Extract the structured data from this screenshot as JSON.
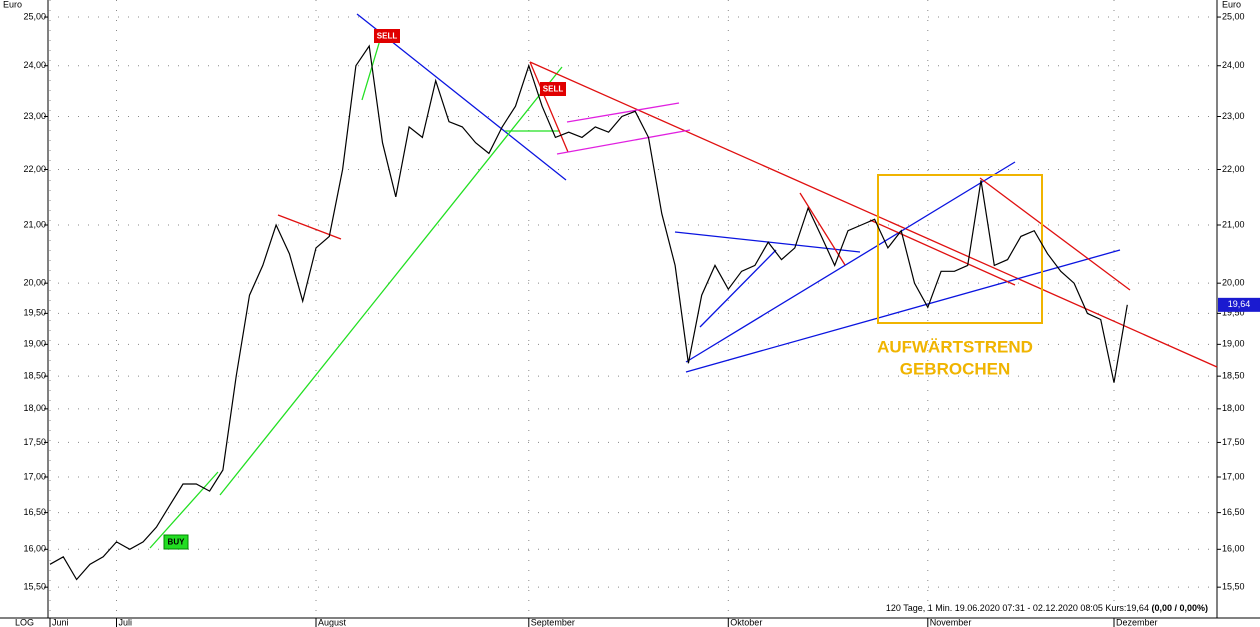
{
  "chart_data": {
    "type": "line",
    "log_scale": true,
    "grid": true,
    "color": "#000000",
    "y_unit": "Euro",
    "scale_label": "LOG",
    "categories": [
      "Juni",
      null,
      null,
      null,
      null,
      "Juli",
      null,
      null,
      null,
      null,
      null,
      null,
      null,
      null,
      null,
      null,
      null,
      null,
      null,
      null,
      "August",
      null,
      null,
      null,
      null,
      null,
      null,
      null,
      null,
      null,
      null,
      null,
      null,
      null,
      null,
      null,
      "September",
      null,
      null,
      null,
      null,
      null,
      null,
      null,
      null,
      null,
      null,
      null,
      null,
      null,
      null,
      "Oktober",
      null,
      null,
      null,
      null,
      null,
      null,
      null,
      null,
      null,
      null,
      null,
      null,
      null,
      null,
      "November",
      null,
      null,
      null,
      null,
      null,
      null,
      null,
      null,
      null,
      null,
      null,
      null,
      null,
      "Dezember",
      null
    ],
    "values": [
      15.8,
      15.9,
      15.6,
      15.8,
      15.9,
      16.1,
      16.0,
      16.1,
      16.3,
      16.6,
      16.9,
      16.9,
      16.8,
      17.1,
      18.5,
      19.8,
      20.3,
      21.0,
      20.5,
      19.7,
      20.6,
      20.8,
      22.0,
      24.0,
      24.4,
      22.5,
      21.5,
      22.8,
      22.6,
      23.7,
      22.9,
      22.8,
      22.5,
      22.3,
      22.8,
      23.2,
      24.0,
      23.2,
      22.6,
      22.7,
      22.6,
      22.8,
      22.7,
      23.0,
      23.1,
      22.6,
      21.2,
      20.3,
      18.7,
      19.8,
      20.3,
      19.9,
      20.2,
      20.3,
      20.7,
      20.4,
      20.6,
      21.3,
      20.8,
      20.3,
      20.9,
      21.0,
      21.1,
      20.6,
      20.9,
      20.0,
      19.6,
      20.2,
      20.2,
      20.3,
      21.8,
      20.3,
      20.4,
      20.8,
      20.9,
      20.5,
      20.2,
      20.0,
      19.5,
      19.4,
      18.4,
      19.64
    ],
    "ylim": [
      15.27,
      25.36
    ],
    "yticks": [
      {
        "value": 15.5,
        "label": "15,50"
      },
      {
        "value": 16,
        "label": "16,00"
      },
      {
        "value": 16.5,
        "label": "16,50"
      },
      {
        "value": 17,
        "label": "17,00"
      },
      {
        "value": 17.5,
        "label": "17,50"
      },
      {
        "value": 18,
        "label": "18,00"
      },
      {
        "value": 18.5,
        "label": "18,50"
      },
      {
        "value": 19,
        "label": "19,00"
      },
      {
        "value": 19.5,
        "label": "19,50"
      },
      {
        "value": 20,
        "label": "20,00"
      },
      {
        "value": 21,
        "label": "21,00"
      },
      {
        "value": 22,
        "label": "22,00"
      },
      {
        "value": 23,
        "label": "23,00"
      },
      {
        "value": 24,
        "label": "24,00"
      },
      {
        "value": 25,
        "label": "25,00"
      }
    ],
    "price_tag": {
      "value": 19.64,
      "label": "19,64"
    },
    "annotations": [
      "SELL",
      "SELL",
      "BUY",
      "AUFWÄRTSTREND",
      "GEBROCHEN"
    ],
    "footer": "120 Tage, 1 Min. 19.06.2020 07:31 - 02.12.2020 08:05  Kurs:19,64",
    "footer_bold": "(0,00 / 0,00%)"
  }
}
